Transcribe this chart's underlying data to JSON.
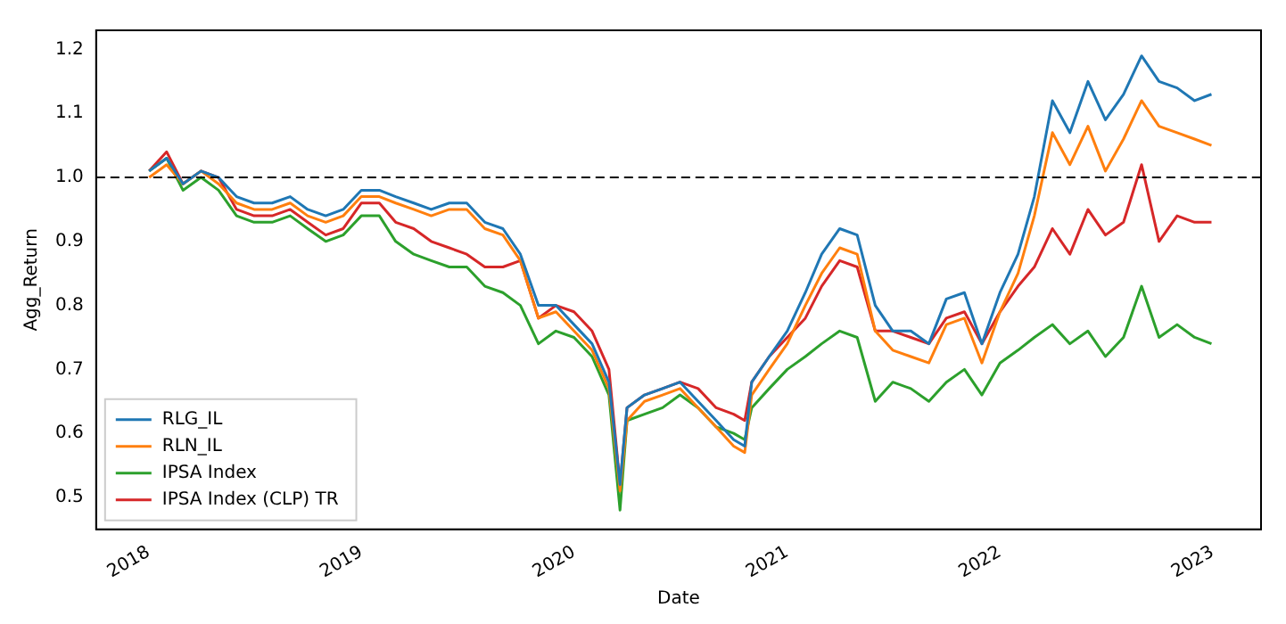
{
  "chart_data": {
    "type": "line",
    "xlabel": "Date",
    "ylabel": "Agg_Return",
    "x": [
      "2018-01-02",
      "2018-02-01",
      "2018-03-01",
      "2018-04-01",
      "2018-05-01",
      "2018-06-01",
      "2018-07-01",
      "2018-08-01",
      "2018-09-01",
      "2018-10-01",
      "2018-11-01",
      "2018-12-01",
      "2019-01-01",
      "2019-02-01",
      "2019-03-01",
      "2019-04-01",
      "2019-05-01",
      "2019-06-01",
      "2019-07-01",
      "2019-08-01",
      "2019-09-01",
      "2019-10-01",
      "2019-11-01",
      "2019-12-01",
      "2020-01-01",
      "2020-02-01",
      "2020-03-01",
      "2020-03-20",
      "2020-04-01",
      "2020-05-01",
      "2020-06-01",
      "2020-07-01",
      "2020-08-01",
      "2020-09-01",
      "2020-10-01",
      "2020-10-20",
      "2020-11-01",
      "2020-12-01",
      "2021-01-01",
      "2021-02-01",
      "2021-03-01",
      "2021-04-01",
      "2021-05-01",
      "2021-06-01",
      "2021-07-01",
      "2021-08-01",
      "2021-09-01",
      "2021-10-01",
      "2021-11-01",
      "2021-12-01",
      "2022-01-01",
      "2022-02-01",
      "2022-03-01",
      "2022-04-01",
      "2022-05-01",
      "2022-06-01",
      "2022-07-01",
      "2022-08-01",
      "2022-09-01",
      "2022-10-01",
      "2022-11-01",
      "2022-12-01",
      "2022-12-30"
    ],
    "series": [
      {
        "name": "RLG_IL",
        "color": "#1f77b4",
        "values": [
          1.01,
          1.03,
          0.99,
          1.01,
          1.0,
          0.97,
          0.96,
          0.96,
          0.97,
          0.95,
          0.94,
          0.95,
          0.98,
          0.98,
          0.97,
          0.96,
          0.95,
          0.96,
          0.96,
          0.93,
          0.92,
          0.88,
          0.8,
          0.8,
          0.77,
          0.74,
          0.68,
          0.52,
          0.64,
          0.66,
          0.67,
          0.68,
          0.65,
          0.62,
          0.59,
          0.58,
          0.68,
          0.72,
          0.76,
          0.82,
          0.88,
          0.92,
          0.91,
          0.8,
          0.76,
          0.76,
          0.74,
          0.81,
          0.82,
          0.74,
          0.82,
          0.88,
          0.97,
          1.12,
          1.07,
          1.15,
          1.09,
          1.13,
          1.19,
          1.15,
          1.14,
          1.12,
          1.13
        ]
      },
      {
        "name": "RLN_IL",
        "color": "#ff7f0e",
        "values": [
          1.0,
          1.02,
          0.99,
          1.01,
          0.99,
          0.96,
          0.95,
          0.95,
          0.96,
          0.94,
          0.93,
          0.94,
          0.97,
          0.97,
          0.96,
          0.95,
          0.94,
          0.95,
          0.95,
          0.92,
          0.91,
          0.87,
          0.78,
          0.79,
          0.76,
          0.73,
          0.67,
          0.51,
          0.62,
          0.65,
          0.66,
          0.67,
          0.64,
          0.61,
          0.58,
          0.57,
          0.66,
          0.7,
          0.74,
          0.8,
          0.85,
          0.89,
          0.88,
          0.76,
          0.73,
          0.72,
          0.71,
          0.77,
          0.78,
          0.71,
          0.79,
          0.85,
          0.94,
          1.07,
          1.02,
          1.08,
          1.01,
          1.06,
          1.12,
          1.08,
          1.07,
          1.06,
          1.05
        ]
      },
      {
        "name": "IPSA Index",
        "color": "#2ca02c",
        "values": [
          1.01,
          1.03,
          0.98,
          1.0,
          0.98,
          0.94,
          0.93,
          0.93,
          0.94,
          0.92,
          0.9,
          0.91,
          0.94,
          0.94,
          0.9,
          0.88,
          0.87,
          0.86,
          0.86,
          0.83,
          0.82,
          0.8,
          0.74,
          0.76,
          0.75,
          0.72,
          0.66,
          0.48,
          0.62,
          0.63,
          0.64,
          0.66,
          0.64,
          0.61,
          0.6,
          0.59,
          0.64,
          0.67,
          0.7,
          0.72,
          0.74,
          0.76,
          0.75,
          0.65,
          0.68,
          0.67,
          0.65,
          0.68,
          0.7,
          0.66,
          0.71,
          0.73,
          0.75,
          0.77,
          0.74,
          0.76,
          0.72,
          0.75,
          0.83,
          0.75,
          0.77,
          0.75,
          0.74
        ]
      },
      {
        "name": "IPSA Index (CLP) TR",
        "color": "#d62728",
        "values": [
          1.01,
          1.04,
          0.99,
          1.01,
          1.0,
          0.95,
          0.94,
          0.94,
          0.95,
          0.93,
          0.91,
          0.92,
          0.96,
          0.96,
          0.93,
          0.92,
          0.9,
          0.89,
          0.88,
          0.86,
          0.86,
          0.87,
          0.78,
          0.8,
          0.79,
          0.76,
          0.7,
          0.52,
          0.64,
          0.66,
          0.67,
          0.68,
          0.67,
          0.64,
          0.63,
          0.62,
          0.68,
          0.72,
          0.75,
          0.78,
          0.83,
          0.87,
          0.86,
          0.76,
          0.76,
          0.75,
          0.74,
          0.78,
          0.79,
          0.74,
          0.79,
          0.83,
          0.86,
          0.92,
          0.88,
          0.95,
          0.91,
          0.93,
          1.02,
          0.9,
          0.94,
          0.93,
          0.93
        ]
      }
    ],
    "xlim": [
      "2017-10-03",
      "2023-03-25"
    ],
    "xticks": [
      "2018",
      "2019",
      "2020",
      "2021",
      "2022",
      "2023"
    ],
    "ylim": [
      0.45,
      1.23
    ],
    "yticks": [
      {
        "value": 0.5,
        "label": "0.5"
      },
      {
        "value": 0.6,
        "label": "0.6"
      },
      {
        "value": 0.7,
        "label": "0.7"
      },
      {
        "value": 0.8,
        "label": "0.8"
      },
      {
        "value": 0.9,
        "label": "0.9"
      },
      {
        "value": 1.0,
        "label": "1.0"
      },
      {
        "value": 1.1,
        "label": "1.1"
      },
      {
        "value": 1.2,
        "label": "1.2"
      }
    ],
    "ref_lines": [
      {
        "axis": "y",
        "value": 1.0,
        "color": "#000000",
        "line_style": "dashed"
      }
    ],
    "legend": "bottom left",
    "grid": false,
    "marker": "none",
    "line_style": "solid"
  }
}
